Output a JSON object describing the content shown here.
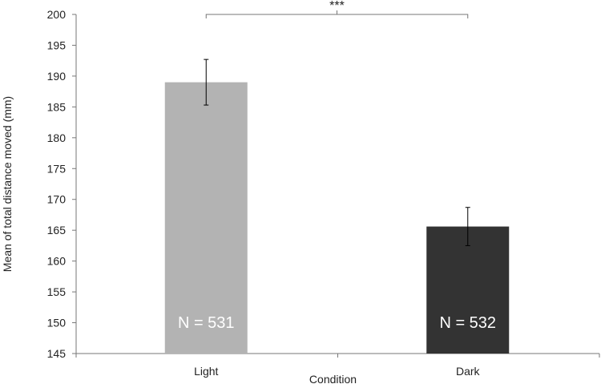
{
  "chart_data": {
    "type": "bar",
    "title": "",
    "xlabel": "Condition",
    "ylabel": "Mean of total distance moved (mm)",
    "categories": [
      "Light",
      "Dark"
    ],
    "values": [
      189,
      165.6
    ],
    "error": [
      3.7,
      3.1
    ],
    "bar_colors": [
      "#b3b3b3",
      "#333333"
    ],
    "bar_labels": [
      "N = 531",
      "N = 532"
    ],
    "ylim": [
      145,
      200
    ],
    "yticks": [
      145,
      150,
      155,
      160,
      165,
      170,
      175,
      180,
      185,
      190,
      195,
      200
    ],
    "significance": {
      "label": "***",
      "between": [
        0,
        1
      ]
    },
    "grid": false,
    "legend": "none"
  }
}
